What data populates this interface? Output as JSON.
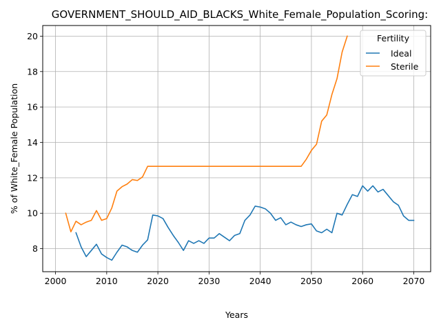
{
  "chart_data": {
    "type": "line",
    "title": "GOVERNMENT_SHOULD_AID_BLACKS_White_Female_Population_Scoring:",
    "xlabel": "Years",
    "ylabel": "% of White_Female Population",
    "xlim": [
      1997.5,
      2073.3
    ],
    "ylim": [
      6.7,
      20.6
    ],
    "xticks": [
      2000,
      2010,
      2020,
      2030,
      2040,
      2050,
      2060,
      2070
    ],
    "yticks": [
      8,
      10,
      12,
      14,
      16,
      18,
      20
    ],
    "grid": true,
    "legend": {
      "title": "Fertility",
      "placement": "top-right"
    },
    "series": [
      {
        "name": "Ideal",
        "color": "#1f77b4",
        "x": [
          2004,
          2005,
          2006,
          2007,
          2008,
          2009,
          2010,
          2011,
          2012,
          2013,
          2014,
          2015,
          2016,
          2017,
          2018,
          2019,
          2020,
          2021,
          2022,
          2023,
          2024,
          2025,
          2026,
          2027,
          2028,
          2029,
          2030,
          2031,
          2032,
          2033,
          2034,
          2035,
          2036,
          2037,
          2038,
          2039,
          2040,
          2041,
          2042,
          2043,
          2044,
          2045,
          2046,
          2047,
          2048,
          2049,
          2050,
          2051,
          2052,
          2053,
          2054,
          2055,
          2056,
          2057,
          2058,
          2059,
          2060,
          2061,
          2062,
          2063,
          2064,
          2065,
          2066,
          2067,
          2068,
          2069,
          2070
        ],
        "y": [
          8.9,
          8.1,
          7.55,
          7.9,
          8.25,
          7.7,
          7.5,
          7.35,
          7.8,
          8.2,
          8.1,
          7.9,
          7.8,
          8.2,
          8.5,
          9.9,
          9.85,
          9.7,
          9.2,
          8.75,
          8.35,
          7.9,
          8.45,
          8.3,
          8.45,
          8.3,
          8.6,
          8.6,
          8.85,
          8.65,
          8.45,
          8.75,
          8.85,
          9.6,
          9.9,
          10.4,
          10.35,
          10.25,
          10.0,
          9.6,
          9.75,
          9.35,
          9.5,
          9.35,
          9.25,
          9.35,
          9.4,
          9.0,
          8.9,
          9.1,
          8.9,
          10.0,
          9.9,
          10.5,
          11.05,
          10.95,
          11.55,
          11.25,
          11.55,
          11.2,
          11.35,
          11.0,
          10.65,
          10.45,
          9.85,
          9.6,
          9.6
        ]
      },
      {
        "name": "Sterile",
        "color": "#ff7f0e",
        "x": [
          2002,
          2003,
          2004,
          2005,
          2006,
          2007,
          2008,
          2009,
          2010,
          2011,
          2012,
          2013,
          2014,
          2015,
          2016,
          2017,
          2018,
          2019,
          2020,
          2021,
          2022,
          2023,
          2024,
          2025,
          2026,
          2027,
          2028,
          2029,
          2030,
          2031,
          2032,
          2033,
          2034,
          2035,
          2036,
          2037,
          2038,
          2039,
          2040,
          2041,
          2042,
          2043,
          2044,
          2045,
          2046,
          2047,
          2048,
          2049,
          2050,
          2051,
          2052,
          2053,
          2054,
          2055,
          2056,
          2057
        ],
        "y": [
          10.0,
          8.95,
          9.55,
          9.35,
          9.5,
          9.6,
          10.15,
          9.6,
          9.7,
          10.3,
          11.25,
          11.5,
          11.65,
          11.9,
          11.85,
          12.05,
          12.65,
          12.65,
          12.65,
          12.65,
          12.65,
          12.65,
          12.65,
          12.65,
          12.65,
          12.65,
          12.65,
          12.65,
          12.65,
          12.65,
          12.65,
          12.65,
          12.65,
          12.65,
          12.65,
          12.65,
          12.65,
          12.65,
          12.65,
          12.65,
          12.65,
          12.65,
          12.65,
          12.65,
          12.65,
          12.65,
          12.65,
          13.05,
          13.55,
          13.9,
          15.2,
          15.55,
          16.7,
          17.6,
          19.1,
          20.0
        ]
      }
    ]
  }
}
